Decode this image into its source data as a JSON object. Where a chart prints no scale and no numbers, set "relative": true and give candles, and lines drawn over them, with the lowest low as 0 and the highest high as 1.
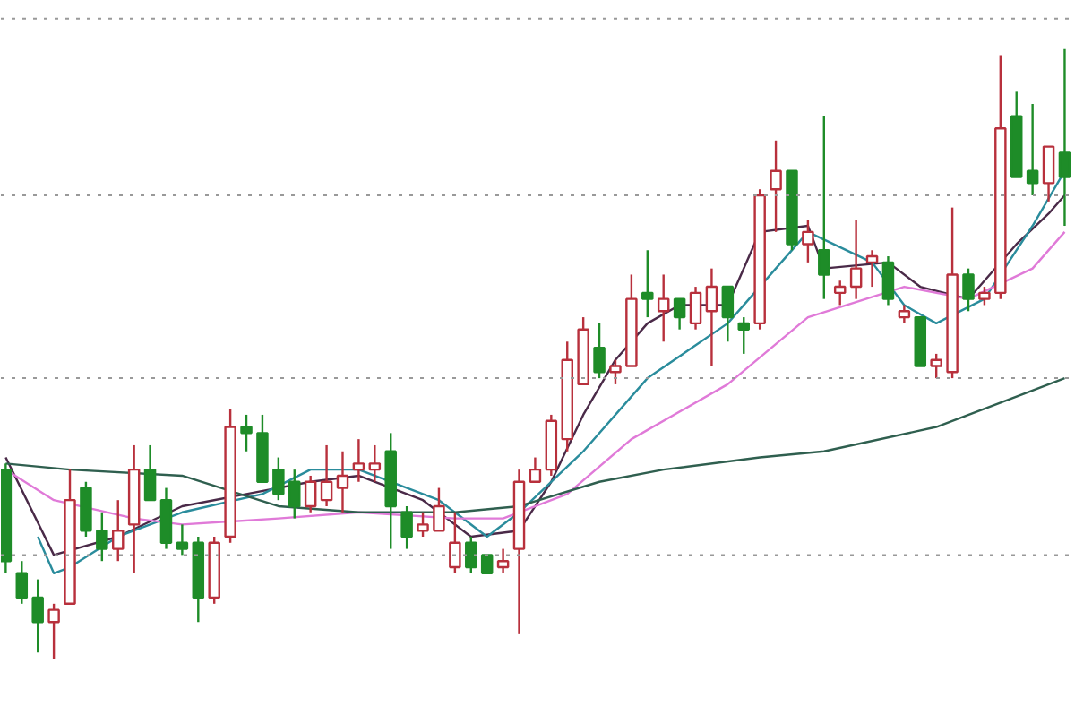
{
  "chart_data": {
    "type": "candlestick",
    "relative": true,
    "categories": [
      null,
      null,
      null,
      null,
      null,
      null,
      null,
      null,
      null,
      null,
      null,
      null,
      null,
      null,
      null,
      null,
      null,
      null,
      null,
      null,
      null,
      null,
      null,
      null,
      null,
      null,
      null,
      null,
      null,
      null,
      null,
      null,
      null,
      null,
      null,
      null,
      null,
      null,
      null,
      null,
      null,
      null,
      null,
      null,
      null,
      null,
      null,
      null,
      null,
      null,
      null,
      null,
      null,
      null,
      null,
      null,
      null,
      null,
      null,
      null,
      null,
      null,
      null,
      null,
      null,
      null,
      null
    ],
    "ohlc": [
      [
        0.31,
        0.32,
        0.14,
        0.16
      ],
      [
        0.14,
        0.16,
        0.09,
        0.1
      ],
      [
        0.1,
        0.13,
        0.01,
        0.06
      ],
      [
        0.06,
        0.09,
        0.0,
        0.08
      ],
      [
        0.09,
        0.31,
        0.09,
        0.26
      ],
      [
        0.28,
        0.29,
        0.2,
        0.21
      ],
      [
        0.21,
        0.24,
        0.16,
        0.18
      ],
      [
        0.18,
        0.26,
        0.16,
        0.21
      ],
      [
        0.22,
        0.35,
        0.14,
        0.31
      ],
      [
        0.31,
        0.35,
        0.26,
        0.26
      ],
      [
        0.26,
        0.28,
        0.18,
        0.19
      ],
      [
        0.19,
        0.22,
        0.17,
        0.18
      ],
      [
        0.19,
        0.2,
        0.06,
        0.1
      ],
      [
        0.1,
        0.2,
        0.09,
        0.19
      ],
      [
        0.2,
        0.41,
        0.19,
        0.38
      ],
      [
        0.38,
        0.4,
        0.34,
        0.37
      ],
      [
        0.37,
        0.4,
        0.29,
        0.29
      ],
      [
        0.31,
        0.33,
        0.26,
        0.27
      ],
      [
        0.29,
        0.31,
        0.23,
        0.25
      ],
      [
        0.25,
        0.3,
        0.24,
        0.29
      ],
      [
        0.26,
        0.35,
        0.25,
        0.29
      ],
      [
        0.28,
        0.34,
        0.24,
        0.3
      ],
      [
        0.31,
        0.36,
        0.29,
        0.32
      ],
      [
        0.31,
        0.35,
        0.29,
        0.32
      ],
      [
        0.34,
        0.37,
        0.18,
        0.25
      ],
      [
        0.24,
        0.25,
        0.18,
        0.2
      ],
      [
        0.21,
        0.24,
        0.2,
        0.22
      ],
      [
        0.21,
        0.28,
        0.21,
        0.25
      ],
      [
        0.15,
        0.24,
        0.14,
        0.19
      ],
      [
        0.19,
        0.2,
        0.14,
        0.15
      ],
      [
        0.17,
        0.17,
        0.14,
        0.14
      ],
      [
        0.15,
        0.18,
        0.14,
        0.16
      ],
      [
        0.18,
        0.31,
        0.04,
        0.29
      ],
      [
        0.29,
        0.33,
        0.29,
        0.31
      ],
      [
        0.31,
        0.4,
        0.3,
        0.39
      ],
      [
        0.36,
        0.52,
        0.34,
        0.49
      ],
      [
        0.45,
        0.56,
        0.45,
        0.54
      ],
      [
        0.51,
        0.55,
        0.46,
        0.47
      ],
      [
        0.47,
        0.49,
        0.45,
        0.48
      ],
      [
        0.48,
        0.63,
        0.48,
        0.59
      ],
      [
        0.6,
        0.67,
        0.56,
        0.59
      ],
      [
        0.57,
        0.63,
        0.52,
        0.59
      ],
      [
        0.59,
        0.59,
        0.54,
        0.56
      ],
      [
        0.55,
        0.61,
        0.54,
        0.6
      ],
      [
        0.57,
        0.64,
        0.48,
        0.61
      ],
      [
        0.61,
        0.61,
        0.52,
        0.56
      ],
      [
        0.55,
        0.56,
        0.5,
        0.54
      ],
      [
        0.55,
        0.77,
        0.54,
        0.76
      ],
      [
        0.77,
        0.85,
        0.7,
        0.8
      ],
      [
        0.8,
        0.8,
        0.67,
        0.68
      ],
      [
        0.68,
        0.72,
        0.65,
        0.7
      ],
      [
        0.67,
        0.89,
        0.59,
        0.63
      ],
      [
        0.6,
        0.62,
        0.58,
        0.61
      ],
      [
        0.61,
        0.72,
        0.59,
        0.64
      ],
      [
        0.65,
        0.67,
        0.61,
        0.66
      ],
      [
        0.65,
        0.66,
        0.58,
        0.59
      ],
      [
        0.56,
        0.58,
        0.55,
        0.57
      ],
      [
        0.56,
        0.56,
        0.48,
        0.48
      ],
      [
        0.48,
        0.5,
        0.46,
        0.49
      ],
      [
        0.47,
        0.74,
        0.46,
        0.63
      ],
      [
        0.63,
        0.64,
        0.57,
        0.59
      ],
      [
        0.59,
        0.61,
        0.58,
        0.6
      ],
      [
        0.6,
        0.99,
        0.59,
        0.87
      ],
      [
        0.89,
        0.93,
        0.79,
        0.79
      ],
      [
        0.8,
        0.91,
        0.76,
        0.78
      ],
      [
        0.78,
        0.84,
        0.75,
        0.84
      ],
      [
        0.83,
        1.0,
        0.71,
        0.79
      ]
    ],
    "colors": [
      "#1e8c28",
      "#1e8c28",
      "#1e8c28",
      "#b8303c",
      "#b8303c",
      "#1e8c28",
      "#1e8c28",
      "#b8303c",
      "#b8303c",
      "#1e8c28",
      "#1e8c28",
      "#1e8c28",
      "#1e8c28",
      "#b8303c",
      "#b8303c",
      "#1e8c28",
      "#1e8c28",
      "#1e8c28",
      "#1e8c28",
      "#b8303c",
      "#b8303c",
      "#b8303c",
      "#b8303c",
      "#b8303c",
      "#1e8c28",
      "#1e8c28",
      "#b8303c",
      "#b8303c",
      "#b8303c",
      "#1e8c28",
      "#1e8c28",
      "#b8303c",
      "#b8303c",
      "#b8303c",
      "#b8303c",
      "#b8303c",
      "#b8303c",
      "#1e8c28",
      "#b8303c",
      "#b8303c",
      "#1e8c28",
      "#b8303c",
      "#1e8c28",
      "#b8303c",
      "#b8303c",
      "#1e8c28",
      "#1e8c28",
      "#b8303c",
      "#b8303c",
      "#1e8c28",
      "#b8303c",
      "#1e8c28",
      "#b8303c",
      "#b8303c",
      "#b8303c",
      "#1e8c28",
      "#b8303c",
      "#1e8c28",
      "#b8303c",
      "#b8303c",
      "#1e8c28",
      "#b8303c",
      "#b8303c",
      "#1e8c28",
      "#1e8c28",
      "#b8303c",
      "#1e8c28"
    ],
    "series": [
      {
        "type": "line",
        "color": "#4a2a48",
        "values": [
          0.33,
          null,
          null,
          0.17,
          null,
          null,
          null,
          0.2,
          null,
          null,
          null,
          0.25,
          null,
          null,
          null,
          0.27,
          null,
          null,
          null,
          0.29,
          null,
          null,
          0.3,
          null,
          null,
          null,
          0.26,
          null,
          null,
          0.2,
          null,
          null,
          0.21,
          null,
          0.29,
          null,
          0.4,
          null,
          0.49,
          null,
          0.55,
          null,
          0.58,
          null,
          null,
          0.58,
          null,
          0.7,
          null,
          null,
          0.71,
          0.64,
          null,
          null,
          null,
          0.65,
          null,
          0.61,
          null,
          null,
          0.59,
          null,
          null,
          0.68,
          null,
          0.73,
          0.76
        ]
      },
      {
        "type": "line",
        "color": "#2a8c9c",
        "values": [
          null,
          null,
          0.2,
          0.14,
          0.15,
          null,
          null,
          0.2,
          null,
          null,
          null,
          0.24,
          null,
          null,
          null,
          null,
          0.27,
          null,
          null,
          0.31,
          null,
          null,
          0.31,
          null,
          null,
          null,
          null,
          0.26,
          null,
          null,
          0.2,
          null,
          0.24,
          null,
          null,
          null,
          0.34,
          null,
          null,
          null,
          0.46,
          null,
          null,
          null,
          null,
          0.55,
          null,
          null,
          0.64,
          null,
          0.7,
          null,
          null,
          null,
          0.65,
          null,
          0.58,
          null,
          0.55,
          null,
          null,
          0.59,
          null,
          null,
          0.71,
          null,
          0.8
        ]
      },
      {
        "type": "line",
        "color": "#e07ad8",
        "values": [
          0.31,
          null,
          null,
          0.26,
          null,
          null,
          null,
          null,
          0.23,
          null,
          null,
          0.22,
          null,
          null,
          null,
          null,
          null,
          0.23,
          null,
          null,
          null,
          null,
          0.24,
          null,
          null,
          null,
          null,
          null,
          0.23,
          null,
          null,
          0.23,
          null,
          null,
          null,
          0.27,
          null,
          null,
          null,
          0.36,
          null,
          null,
          null,
          null,
          null,
          0.45,
          null,
          null,
          null,
          null,
          0.56,
          null,
          null,
          null,
          null,
          null,
          0.61,
          null,
          null,
          null,
          0.59,
          null,
          null,
          null,
          0.64,
          null,
          0.7
        ]
      },
      {
        "type": "line",
        "color": "#2f5f4f",
        "values": [
          0.32,
          null,
          null,
          null,
          0.31,
          null,
          null,
          null,
          null,
          null,
          null,
          0.3,
          null,
          null,
          null,
          null,
          null,
          0.25,
          null,
          null,
          null,
          null,
          0.24,
          null,
          null,
          null,
          null,
          null,
          0.24,
          null,
          null,
          null,
          0.25,
          null,
          null,
          null,
          null,
          0.29,
          null,
          null,
          null,
          0.31,
          null,
          null,
          null,
          null,
          null,
          0.33,
          null,
          null,
          null,
          0.34,
          null,
          null,
          null,
          null,
          null,
          null,
          0.38,
          null,
          null,
          null,
          null,
          0.43,
          null,
          null,
          0.46
        ]
      }
    ],
    "ref_lines": [
      {
        "axis": "y",
        "value": 1.05,
        "color": "#999999",
        "line_style": "dotted"
      },
      {
        "axis": "y",
        "value": 0.76,
        "color": "#999999",
        "line_style": "dotted"
      },
      {
        "axis": "y",
        "value": 0.46,
        "color": "#999999",
        "line_style": "dotted"
      },
      {
        "axis": "y",
        "value": 0.17,
        "color": "#999999",
        "line_style": "dotted"
      }
    ]
  }
}
